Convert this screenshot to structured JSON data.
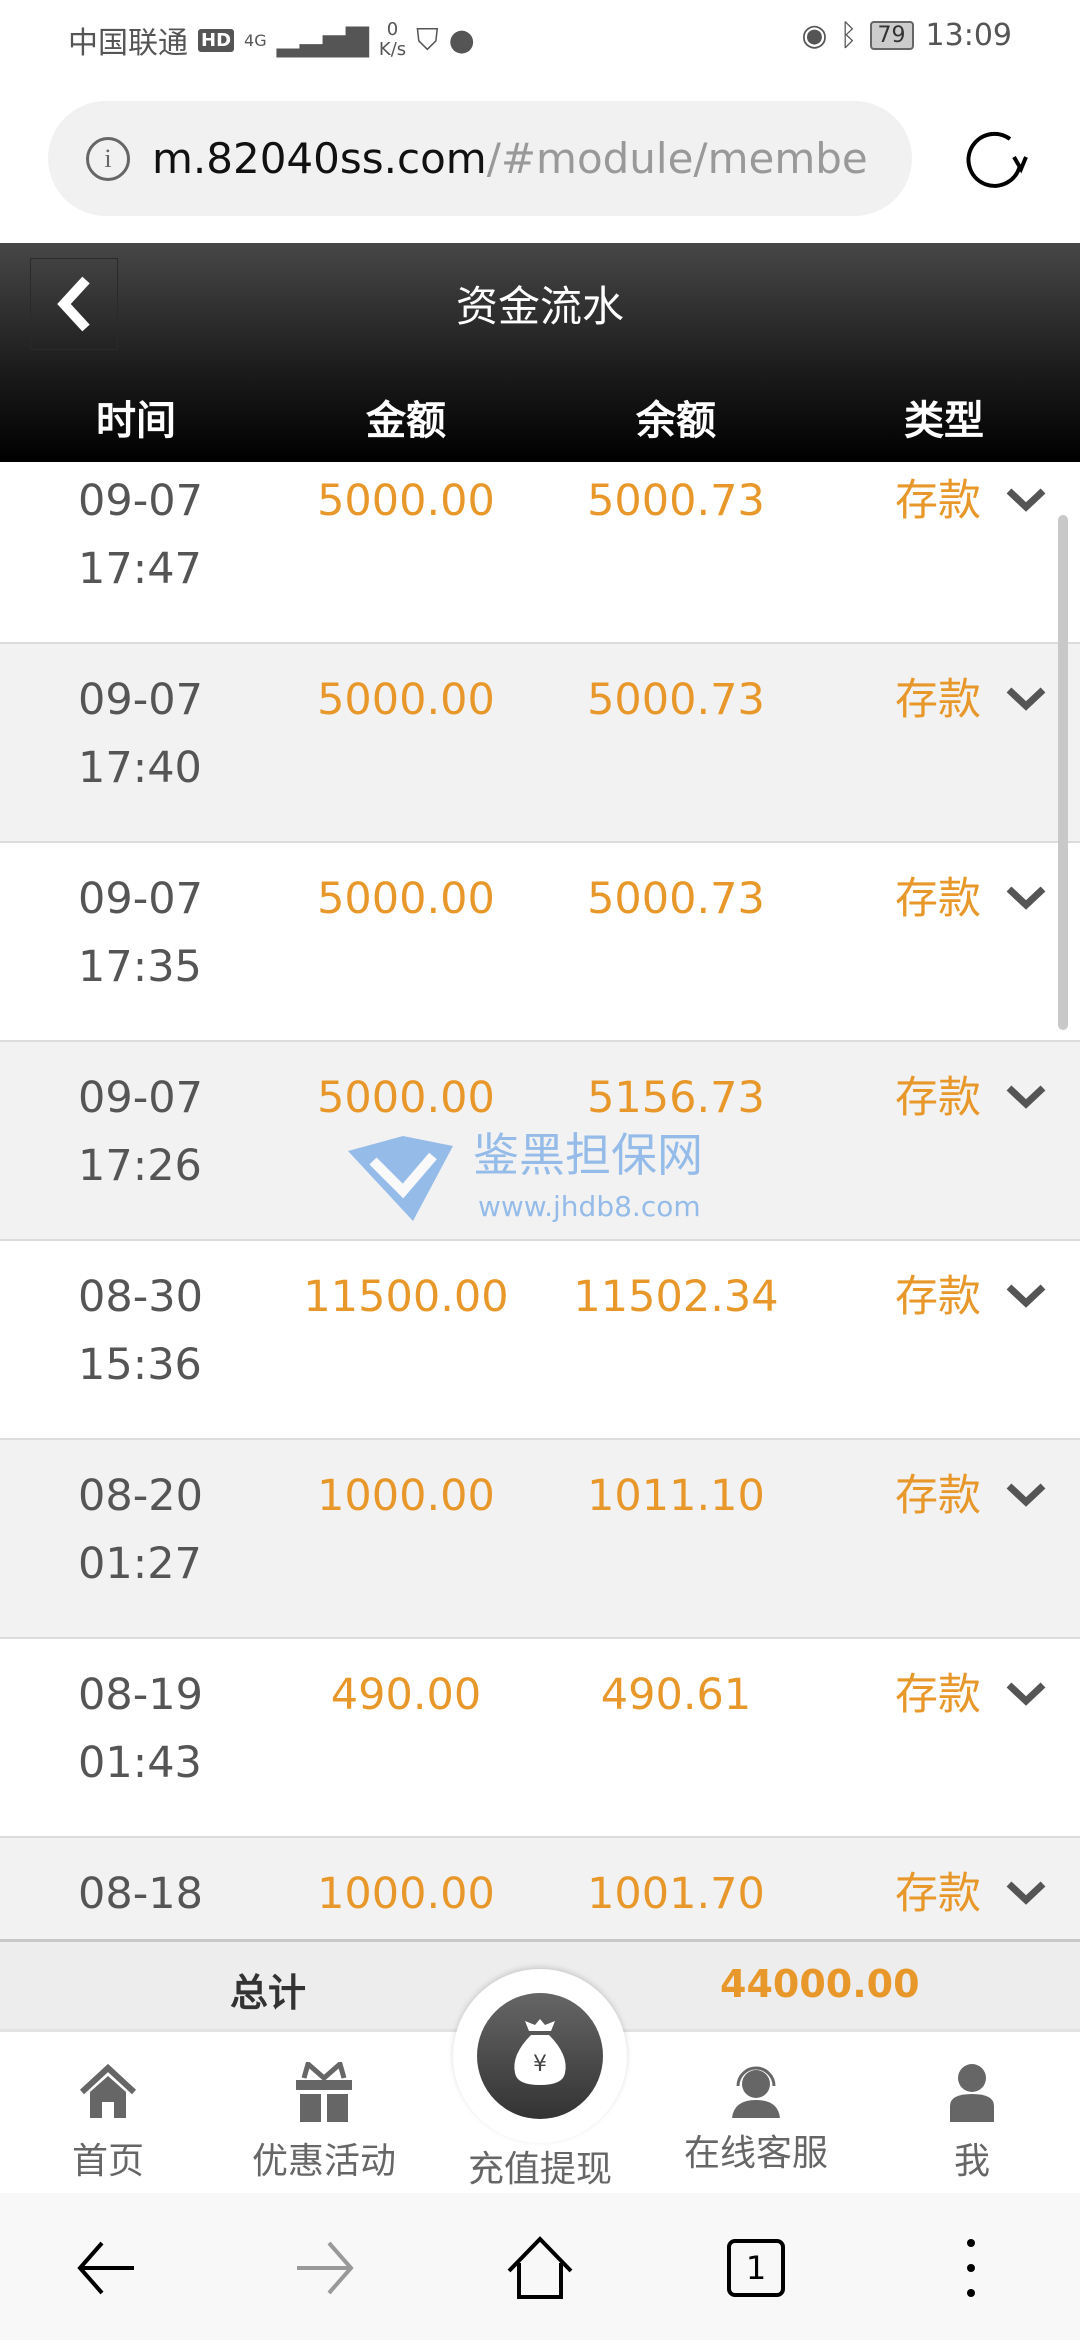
{
  "status_bar": {
    "carrier": "中国联通",
    "hd": "HD",
    "network": "4G",
    "speed_value": "0",
    "speed_unit": "K/s",
    "battery": "79",
    "time": "13:09"
  },
  "browser": {
    "url_host": "m.82040ss.com",
    "url_path": "/#module/membe",
    "tabs_count": "1"
  },
  "header": {
    "title": "资金流水",
    "columns": [
      "时间",
      "金额",
      "余额",
      "类型"
    ]
  },
  "rows": [
    {
      "date": "09-07",
      "time": "17:47",
      "amount": "5000.00",
      "balance": "5000.73",
      "type": "存款"
    },
    {
      "date": "09-07",
      "time": "17:40",
      "amount": "5000.00",
      "balance": "5000.73",
      "type": "存款"
    },
    {
      "date": "09-07",
      "time": "17:35",
      "amount": "5000.00",
      "balance": "5000.73",
      "type": "存款"
    },
    {
      "date": "09-07",
      "time": "17:26",
      "amount": "5000.00",
      "balance": "5156.73",
      "type": "存款"
    },
    {
      "date": "08-30",
      "time": "15:36",
      "amount": "11500.00",
      "balance": "11502.34",
      "type": "存款"
    },
    {
      "date": "08-20",
      "time": "01:27",
      "amount": "1000.00",
      "balance": "1011.10",
      "type": "存款"
    },
    {
      "date": "08-19",
      "time": "01:43",
      "amount": "490.00",
      "balance": "490.61",
      "type": "存款"
    },
    {
      "date": "08-18",
      "time": "",
      "amount": "1000.00",
      "balance": "1001.70",
      "type": "存款"
    }
  ],
  "watermark": {
    "name": "鉴黑担保网",
    "site": "www.jhdb8.com"
  },
  "total": {
    "label": "总计",
    "value": "44000.00"
  },
  "tabbar": [
    {
      "label": "首页",
      "icon": "home-icon"
    },
    {
      "label": "优惠活动",
      "icon": "gift-icon"
    },
    {
      "label": "充值提现",
      "icon": "money-bag-icon"
    },
    {
      "label": "在线客服",
      "icon": "headset-icon"
    },
    {
      "label": "我",
      "icon": "user-icon"
    }
  ],
  "colors": {
    "accent": "#e8982a",
    "header": "#1a1a1a"
  }
}
